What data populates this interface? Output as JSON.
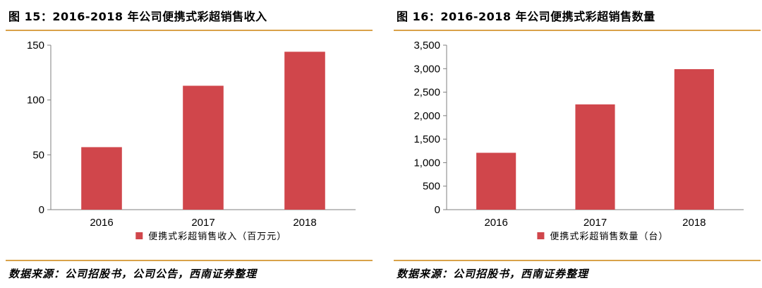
{
  "charts": [
    {
      "title": "图 15：2016-2018 年公司便携式彩超销售收入",
      "source": "数据来源：公司招股书，公司公告，西南证券整理"
    },
    {
      "title": "图 16：2016-2018 年公司便携式彩超销售数量",
      "source": "数据来源：公司招股书，西南证券整理"
    }
  ],
  "chart_data": [
    {
      "type": "bar",
      "categories": [
        "2016",
        "2017",
        "2018"
      ],
      "series": [
        {
          "name": "便携式彩超销售收入（百万元）",
          "values": [
            57,
            113,
            144
          ]
        }
      ],
      "ylim": [
        0,
        150
      ],
      "yticks": [
        0,
        50,
        100,
        150
      ],
      "ytick_labels": [
        "0",
        "50",
        "100",
        "150"
      ],
      "color": "#d0464b",
      "grid": false,
      "legend_position": "bottom"
    },
    {
      "type": "bar",
      "categories": [
        "2016",
        "2017",
        "2018"
      ],
      "series": [
        {
          "name": "便携式彩超销售数量（台）",
          "values": [
            1210,
            2240,
            2990
          ]
        }
      ],
      "ylim": [
        0,
        3500
      ],
      "yticks": [
        0,
        500,
        1000,
        1500,
        2000,
        2500,
        3000,
        3500
      ],
      "ytick_labels": [
        "0",
        "500",
        "1,000",
        "1,500",
        "2,000",
        "2,500",
        "3,000",
        "3,500"
      ],
      "color": "#d0464b",
      "grid": false,
      "legend_position": "bottom"
    }
  ]
}
